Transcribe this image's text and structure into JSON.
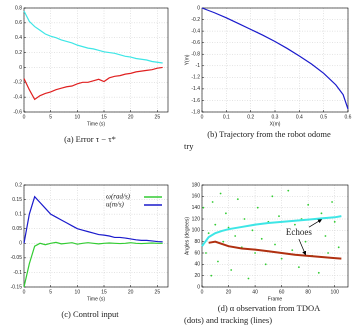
{
  "chart_data": [
    {
      "type": "line",
      "caption": [
        "(a) Error τ − τ*"
      ],
      "xlabel": "Time (s)",
      "xlim": [
        0,
        27
      ],
      "ylim": [
        -0.6,
        0.8
      ],
      "xticks": [
        0,
        5,
        10,
        15,
        20,
        25
      ],
      "yticks": [
        -0.6,
        -0.4,
        -0.2,
        0,
        0.2,
        0.4,
        0.6,
        0.8
      ],
      "grid": true,
      "series": [
        {
          "color": "#3ee6e6",
          "x": [
            0,
            1,
            2,
            3,
            4,
            5,
            6,
            7,
            8,
            9,
            10,
            11,
            12,
            13,
            14,
            15,
            16,
            17,
            18,
            19,
            20,
            21,
            22,
            23,
            24,
            25,
            26
          ],
          "values": [
            0.76,
            0.62,
            0.55,
            0.5,
            0.45,
            0.42,
            0.4,
            0.37,
            0.35,
            0.33,
            0.3,
            0.28,
            0.26,
            0.25,
            0.23,
            0.21,
            0.2,
            0.19,
            0.17,
            0.15,
            0.14,
            0.12,
            0.11,
            0.1,
            0.08,
            0.07,
            0.06
          ]
        },
        {
          "color": "#e02020",
          "x": [
            0,
            1,
            2,
            3,
            4,
            5,
            6,
            7,
            8,
            9,
            10,
            11,
            12,
            13,
            14,
            15,
            16,
            17,
            18,
            19,
            20,
            21,
            22,
            23,
            24,
            25,
            26
          ],
          "values": [
            -0.15,
            -0.3,
            -0.43,
            -0.38,
            -0.35,
            -0.33,
            -0.3,
            -0.28,
            -0.26,
            -0.25,
            -0.22,
            -0.2,
            -0.2,
            -0.18,
            -0.16,
            -0.19,
            -0.14,
            -0.12,
            -0.11,
            -0.09,
            -0.08,
            -0.06,
            -0.05,
            -0.04,
            -0.03,
            -0.01,
            0
          ]
        }
      ]
    },
    {
      "type": "line",
      "caption": [
        "(b) Trajectory from the robot odome",
        "try"
      ],
      "xlabel": "X(m)",
      "ylabel": "Y(m)",
      "xlim": [
        0,
        0.6
      ],
      "ylim": [
        -1.8,
        0
      ],
      "xticks": [
        0,
        0.1,
        0.2,
        0.3,
        0.4,
        0.5,
        0.6
      ],
      "yticks": [
        -1.8,
        -1.6,
        -1.4,
        -1.2,
        -1,
        -0.8,
        -0.6,
        -0.4,
        -0.2,
        0
      ],
      "grid": true,
      "series": [
        {
          "color": "#1a1acc",
          "x": [
            0,
            0.05,
            0.1,
            0.15,
            0.2,
            0.25,
            0.3,
            0.35,
            0.4,
            0.45,
            0.5,
            0.55,
            0.58,
            0.6
          ],
          "values": [
            0,
            -0.08,
            -0.17,
            -0.27,
            -0.37,
            -0.47,
            -0.58,
            -0.7,
            -0.83,
            -0.97,
            -1.13,
            -1.33,
            -1.5,
            -1.75
          ]
        }
      ]
    },
    {
      "type": "line",
      "caption": [
        "(c) Control input"
      ],
      "xlabel": "Time (s)",
      "xlim": [
        0,
        27
      ],
      "ylim": [
        -0.15,
        0.2
      ],
      "xticks": [
        0,
        5,
        10,
        15,
        20,
        25
      ],
      "yticks": [
        -0.15,
        -0.1,
        -0.05,
        0,
        0.05,
        0.1,
        0.15,
        0.2
      ],
      "grid": true,
      "legend": "top-right",
      "series": [
        {
          "name": "ω(rad/s)",
          "color": "#33cc33",
          "x": [
            0,
            1,
            2,
            3,
            4,
            5,
            6,
            7,
            8,
            9,
            10,
            11,
            12,
            13,
            14,
            15,
            16,
            17,
            18,
            19,
            20,
            21,
            22,
            23,
            24,
            25,
            26
          ],
          "values": [
            -0.15,
            -0.07,
            -0.01,
            0,
            -0.005,
            0,
            0.003,
            -0.002,
            0,
            0.002,
            -0.003,
            0,
            0.002,
            0,
            -0.002,
            0,
            0.001,
            0,
            -0.001,
            0,
            0.002,
            0,
            -0.001,
            0,
            0.001,
            0,
            0
          ]
        },
        {
          "name": "u(m/s)",
          "color": "#1a1acc",
          "x": [
            0,
            1,
            2,
            3,
            4,
            5,
            6,
            7,
            8,
            9,
            10,
            11,
            12,
            13,
            14,
            15,
            16,
            17,
            18,
            19,
            20,
            21,
            22,
            23,
            24,
            25,
            26
          ],
          "values": [
            0,
            0.1,
            0.16,
            0.14,
            0.12,
            0.1,
            0.09,
            0.08,
            0.07,
            0.06,
            0.05,
            0.045,
            0.04,
            0.035,
            0.03,
            0.028,
            0.025,
            0.02,
            0.02,
            0.018,
            0.015,
            0.012,
            0.01,
            0.01,
            0.008,
            0.006,
            0.005
          ]
        }
      ]
    },
    {
      "type": "line",
      "caption": [
        "(d)  α  observation  from  TDOA",
        "(dots) and tracking (lines)"
      ],
      "xlabel": "Frame",
      "ylabel": "Angles (degrees)",
      "annotation": "Echoes",
      "xlim": [
        0,
        110
      ],
      "ylim": [
        0,
        180
      ],
      "xticks": [
        0,
        20,
        40,
        60,
        80,
        100
      ],
      "yticks": [
        0,
        20,
        40,
        60,
        80,
        100,
        120,
        140,
        160,
        180
      ],
      "grid": true,
      "series": [
        {
          "type": "scatter",
          "color": "#33cc33",
          "x": [
            1,
            3,
            5,
            7,
            8,
            10,
            12,
            14,
            16,
            18,
            20,
            22,
            25,
            27,
            30,
            32,
            35,
            38,
            40,
            42,
            45,
            48,
            50,
            53,
            55,
            58,
            60,
            63,
            65,
            68,
            70,
            73,
            75,
            78,
            80,
            83,
            85,
            88,
            90,
            93,
            95,
            98,
            100,
            103
          ],
          "values": [
            140,
            60,
            95,
            20,
            150,
            110,
            45,
            165,
            80,
            130,
            105,
            30,
            90,
            155,
            70,
            120,
            15,
            100,
            60,
            140,
            85,
            40,
            115,
            160,
            75,
            125,
            50,
            95,
            170,
            65,
            110,
            35,
            120,
            80,
            145,
            55,
            100,
            25,
            130,
            90,
            60,
            150,
            115,
            70
          ]
        },
        {
          "color": "#3ee6e6",
          "x": [
            0,
            5,
            10,
            15,
            20,
            30,
            40,
            50,
            60,
            70,
            80,
            90,
            100,
            105
          ],
          "values": [
            72,
            88,
            95,
            99,
            102,
            106,
            110,
            113,
            115,
            117,
            119,
            121,
            123,
            125
          ]
        },
        {
          "color": "#b03010",
          "x": [
            5,
            10,
            15,
            20,
            30,
            40,
            50,
            60,
            70,
            80,
            90,
            100,
            105
          ],
          "values": [
            78,
            80,
            76,
            72,
            68,
            66,
            63,
            60,
            57,
            55,
            53,
            51,
            50
          ]
        }
      ]
    }
  ]
}
